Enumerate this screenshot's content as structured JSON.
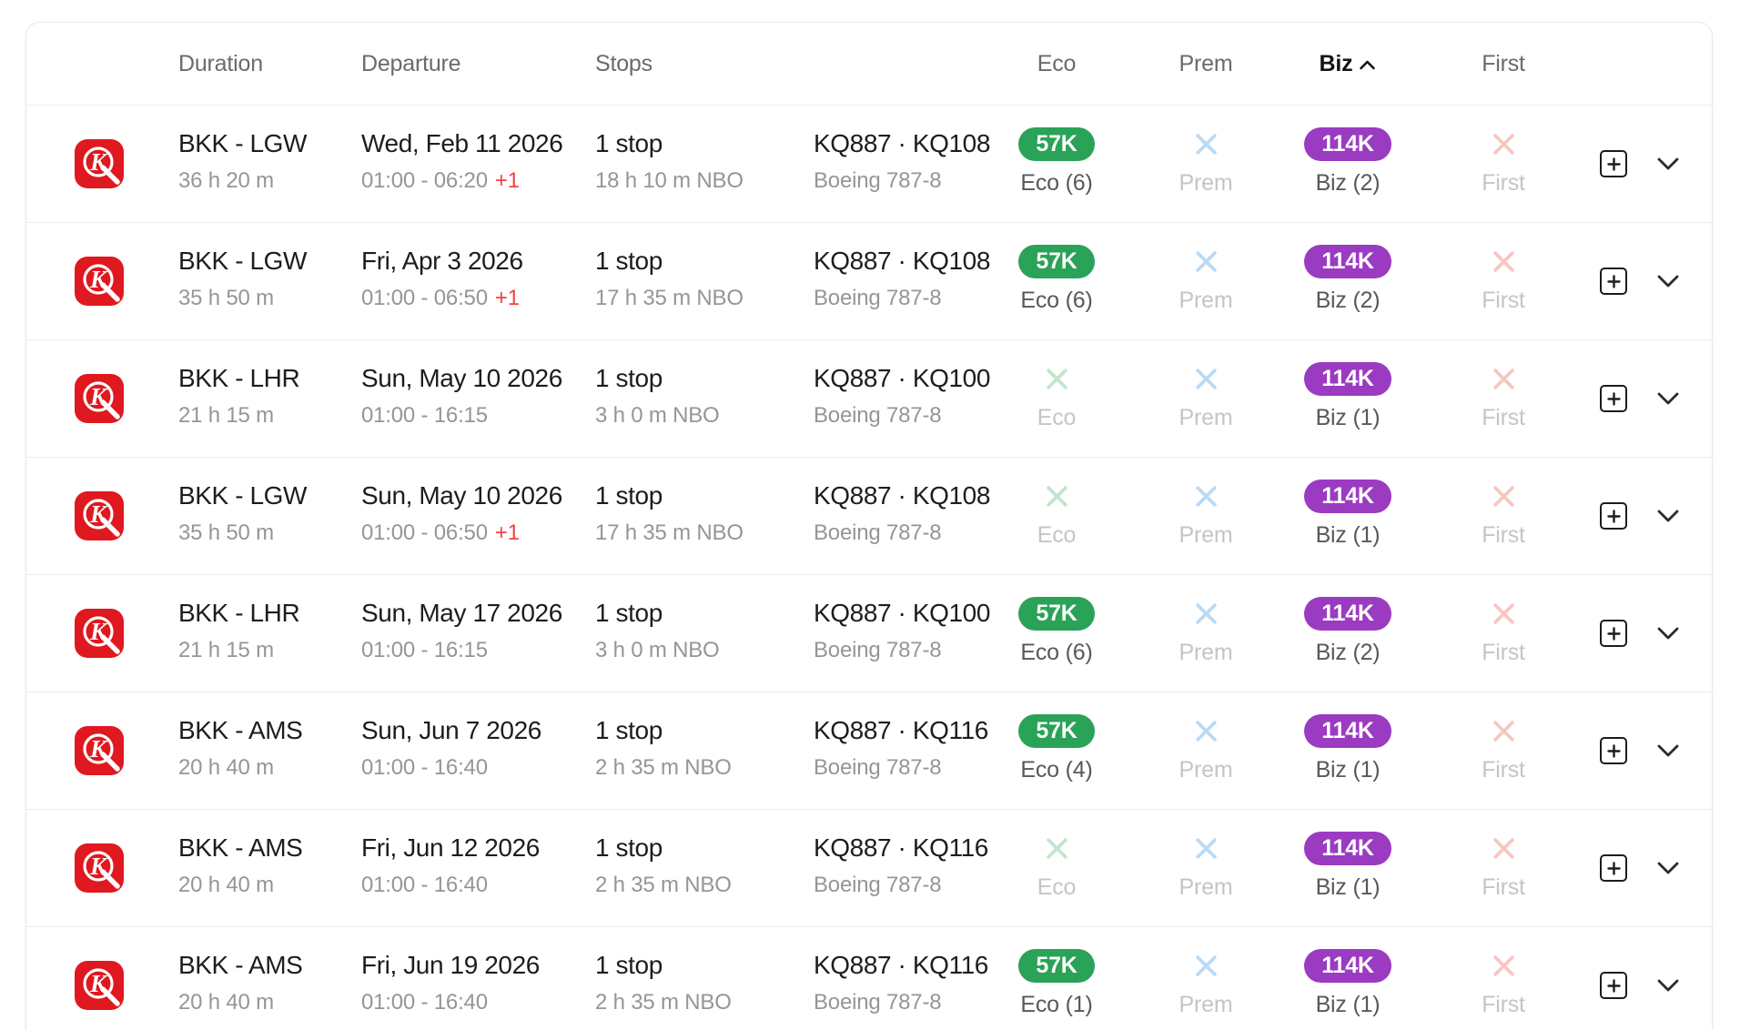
{
  "table": {
    "columns": {
      "duration": "Duration",
      "departure": "Departure",
      "stops": "Stops",
      "eco": "Eco",
      "prem": "Prem",
      "biz": "Biz",
      "first": "First"
    },
    "sort": {
      "column": "Biz",
      "direction": "ascending"
    }
  },
  "airline_logo": "kenya-airways-logo",
  "colors": {
    "eco_pill": "#2aa257",
    "biz_pill": "#9a3bc1",
    "eco_x": "#c1e5cc",
    "prem_x": "#badaf5",
    "first_x": "#f7c6c0",
    "overnight": "#f04343",
    "logo_red": "#e0181f"
  },
  "rows": [
    {
      "route": "BKK - LGW",
      "duration": "36 h 20 m",
      "date": "Wed, Feb 11 2026",
      "times": "01:00 - 06:20",
      "overnight": "+1",
      "stops": "1 stop",
      "layover": "18 h 10 m NBO",
      "flights": "KQ887 · KQ108",
      "aircraft": "Boeing 787-8",
      "eco": {
        "available": true,
        "price": "57K",
        "label": "Eco (6)"
      },
      "prem": {
        "available": false,
        "price": "",
        "label": "Prem"
      },
      "biz": {
        "available": true,
        "price": "114K",
        "label": "Biz (2)"
      },
      "first": {
        "available": false,
        "price": "",
        "label": "First"
      }
    },
    {
      "route": "BKK - LGW",
      "duration": "35 h 50 m",
      "date": "Fri, Apr 3 2026",
      "times": "01:00 - 06:50",
      "overnight": "+1",
      "stops": "1 stop",
      "layover": "17 h 35 m NBO",
      "flights": "KQ887 · KQ108",
      "aircraft": "Boeing 787-8",
      "eco": {
        "available": true,
        "price": "57K",
        "label": "Eco (6)"
      },
      "prem": {
        "available": false,
        "price": "",
        "label": "Prem"
      },
      "biz": {
        "available": true,
        "price": "114K",
        "label": "Biz (2)"
      },
      "first": {
        "available": false,
        "price": "",
        "label": "First"
      }
    },
    {
      "route": "BKK - LHR",
      "duration": "21 h 15 m",
      "date": "Sun, May 10 2026",
      "times": "01:00 - 16:15",
      "overnight": "",
      "stops": "1 stop",
      "layover": "3 h 0 m NBO",
      "flights": "KQ887 · KQ100",
      "aircraft": "Boeing 787-8",
      "eco": {
        "available": false,
        "price": "",
        "label": "Eco"
      },
      "prem": {
        "available": false,
        "price": "",
        "label": "Prem"
      },
      "biz": {
        "available": true,
        "price": "114K",
        "label": "Biz (1)"
      },
      "first": {
        "available": false,
        "price": "",
        "label": "First"
      }
    },
    {
      "route": "BKK - LGW",
      "duration": "35 h 50 m",
      "date": "Sun, May 10 2026",
      "times": "01:00 - 06:50",
      "overnight": "+1",
      "stops": "1 stop",
      "layover": "17 h 35 m NBO",
      "flights": "KQ887 · KQ108",
      "aircraft": "Boeing 787-8",
      "eco": {
        "available": false,
        "price": "",
        "label": "Eco"
      },
      "prem": {
        "available": false,
        "price": "",
        "label": "Prem"
      },
      "biz": {
        "available": true,
        "price": "114K",
        "label": "Biz (1)"
      },
      "first": {
        "available": false,
        "price": "",
        "label": "First"
      }
    },
    {
      "route": "BKK - LHR",
      "duration": "21 h 15 m",
      "date": "Sun, May 17 2026",
      "times": "01:00 - 16:15",
      "overnight": "",
      "stops": "1 stop",
      "layover": "3 h 0 m NBO",
      "flights": "KQ887 · KQ100",
      "aircraft": "Boeing 787-8",
      "eco": {
        "available": true,
        "price": "57K",
        "label": "Eco (6)"
      },
      "prem": {
        "available": false,
        "price": "",
        "label": "Prem"
      },
      "biz": {
        "available": true,
        "price": "114K",
        "label": "Biz (2)"
      },
      "first": {
        "available": false,
        "price": "",
        "label": "First"
      }
    },
    {
      "route": "BKK - AMS",
      "duration": "20 h 40 m",
      "date": "Sun, Jun 7 2026",
      "times": "01:00 - 16:40",
      "overnight": "",
      "stops": "1 stop",
      "layover": "2 h 35 m NBO",
      "flights": "KQ887 · KQ116",
      "aircraft": "Boeing 787-8",
      "eco": {
        "available": true,
        "price": "57K",
        "label": "Eco (4)"
      },
      "prem": {
        "available": false,
        "price": "",
        "label": "Prem"
      },
      "biz": {
        "available": true,
        "price": "114K",
        "label": "Biz (1)"
      },
      "first": {
        "available": false,
        "price": "",
        "label": "First"
      }
    },
    {
      "route": "BKK - AMS",
      "duration": "20 h 40 m",
      "date": "Fri, Jun 12 2026",
      "times": "01:00 - 16:40",
      "overnight": "",
      "stops": "1 stop",
      "layover": "2 h 35 m NBO",
      "flights": "KQ887 · KQ116",
      "aircraft": "Boeing 787-8",
      "eco": {
        "available": false,
        "price": "",
        "label": "Eco"
      },
      "prem": {
        "available": false,
        "price": "",
        "label": "Prem"
      },
      "biz": {
        "available": true,
        "price": "114K",
        "label": "Biz (1)"
      },
      "first": {
        "available": false,
        "price": "",
        "label": "First"
      }
    },
    {
      "route": "BKK - AMS",
      "duration": "20 h 40 m",
      "date": "Fri, Jun 19 2026",
      "times": "01:00 - 16:40",
      "overnight": "",
      "stops": "1 stop",
      "layover": "2 h 35 m NBO",
      "flights": "KQ887 · KQ116",
      "aircraft": "Boeing 787-8",
      "eco": {
        "available": true,
        "price": "57K",
        "label": "Eco (1)"
      },
      "prem": {
        "available": false,
        "price": "",
        "label": "Prem"
      },
      "biz": {
        "available": true,
        "price": "114K",
        "label": "Biz (1)"
      },
      "first": {
        "available": false,
        "price": "",
        "label": "First"
      }
    }
  ]
}
